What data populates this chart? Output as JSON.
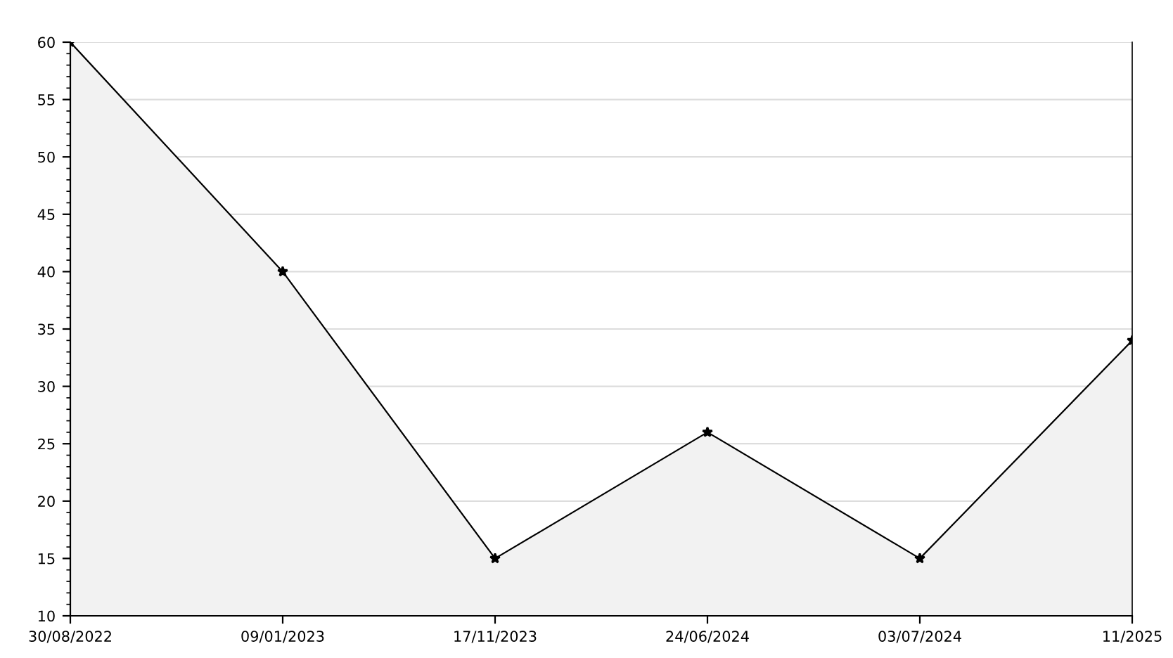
{
  "chart_data": {
    "type": "area",
    "categories": [
      "30/08/2022",
      "09/01/2023",
      "17/11/2023",
      "24/06/2024",
      "03/07/2024",
      "11/2025"
    ],
    "series": [
      {
        "color": "#f2f2f2",
        "values": [
          60,
          40,
          15,
          26,
          15,
          34
        ]
      }
    ],
    "ylim": [
      10,
      60
    ],
    "yticks": [
      10,
      15,
      20,
      25,
      30,
      35,
      40,
      45,
      50,
      55,
      60
    ],
    "grid": "y",
    "marker": "star",
    "line_style": "solid",
    "legend": false
  }
}
